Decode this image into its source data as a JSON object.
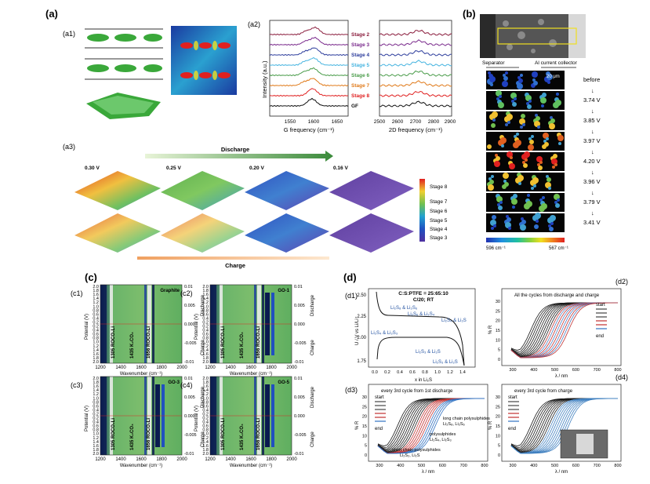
{
  "panels": {
    "a": "(a)",
    "a1": "(a1)",
    "a2": "(a2)",
    "a3": "(a3)",
    "b": "(b)",
    "c": "(c)",
    "c1": "(c1)",
    "c2": "(c2)",
    "c3": "(c3)",
    "c4": "(c4)",
    "d": "(d)",
    "d1": "(d1)",
    "d2": "(d2)",
    "d3": "(d3)",
    "d4": "(d4)"
  },
  "a2": {
    "ylabel": "Intensity (a.u.)",
    "xlabel_g": "G frequency (cm⁻¹)",
    "xlabel_2d": "2D frequency (cm⁻¹)",
    "g_ticks": [
      "1550",
      "1600",
      "1650"
    ],
    "d_ticks": [
      "2500",
      "2600",
      "2700",
      "2800",
      "2900"
    ],
    "stages": [
      {
        "label": "Stage 2",
        "color": "#8a1c3c"
      },
      {
        "label": "Stage 3",
        "color": "#7a2a8c"
      },
      {
        "label": "Stage 4",
        "color": "#2c3c9c"
      },
      {
        "label": "Stage 5",
        "color": "#46b4e0"
      },
      {
        "label": "Stage 6",
        "color": "#4a9c4a"
      },
      {
        "label": "Stage 7",
        "color": "#e07a1a"
      },
      {
        "label": "Stage 8",
        "color": "#e02020"
      },
      {
        "label": "GF",
        "color": "#111111"
      }
    ]
  },
  "a3": {
    "discharge": "Discharge",
    "charge": "Charge",
    "voltages": [
      "0.30 V",
      "0.25 V",
      "0.20 V",
      "0.16 V"
    ],
    "legend": [
      "Stage 8",
      "Stage 7",
      "Stage 6",
      "Stage 5",
      "Stage 4",
      "Stage 3"
    ]
  },
  "b": {
    "separator": "Separator",
    "collector": "Al current collector",
    "scale": "20 μm",
    "steps": [
      "before",
      "3.74 V",
      "3.85 V",
      "3.97 V",
      "4.20 V",
      "3.96 V",
      "3.79 V",
      "3.41 V"
    ],
    "cbar_left": "596 cm⁻¹",
    "cbar_right": "567 cm⁻¹"
  },
  "c": {
    "ylabel": "Potential (V)",
    "xlabel": "Wavenumber (cm⁻¹)",
    "x_ticks": [
      "1200",
      "1400",
      "1600",
      "1800",
      "2000"
    ],
    "y_ticks": [
      "2.0",
      "1.8",
      "1.6",
      "1.4",
      "1.2",
      "1.0",
      "0.8",
      "0.6",
      "0.4",
      "0.2",
      "0.2",
      "0.4",
      "0.6",
      "0.8",
      "1.0",
      "1.2",
      "1.4",
      "1.6",
      "1.8",
      "2.0"
    ],
    "c_ticks": [
      "0.01",
      "0.005",
      "0.000",
      "-0.005",
      "-0.01"
    ],
    "discharge": "Discharge",
    "charge": "Charge",
    "band1": "1305 ROCO₂Li",
    "band2": "1435 K₂CO₃",
    "band3": "1656 ROCO₂Li",
    "titles": [
      "Graphite",
      "GO-1",
      "GO-3",
      "GO-5"
    ]
  },
  "d": {
    "d1_title": "C:S:PTFE = 25:65:10",
    "d1_sub": "C/20; RT",
    "d1_ylabel": "U / V vs Li/Li⁺",
    "d1_xlabel": "x in Li₂S",
    "d1_yticks": [
      "2.50",
      "2.25",
      "2.00",
      "1.75"
    ],
    "d1_xticks": [
      "0.0",
      "0.2",
      "0.4",
      "0.6",
      "0.8",
      "1.0",
      "1.2",
      "1.4"
    ],
    "d1_ann": [
      "Li₂S₈ & Li₂S₆",
      "Li₂S₆ & Li₂S₄",
      "Li₂S₄ & Li₂S",
      "Li₂S₄ & Li₂S₃",
      "Li₂S₃ & Li₂S",
      "Li₂S₃ & Li₂S"
    ],
    "d2_title": "All the cycles from discharge and charge",
    "d3_title": "every 3rd cycle from 1st discharge",
    "d4_title": "every 3rd cycle from charge",
    "r_ylabel": "% R",
    "r_xlabel": "λ / nm",
    "r_xticks": [
      "300",
      "400",
      "500",
      "600",
      "700",
      "800"
    ],
    "r_yticks": [
      "30",
      "25",
      "20",
      "15",
      "10",
      "5",
      "0"
    ],
    "start": "start",
    "end": "end",
    "d3_ann": [
      "long chain polysulphides",
      "Li₂S₈, Li₂S₆",
      "polysulphides",
      "Li₂S₄, Li₂S₃",
      "short chain polysulphides",
      "Li₂S₂, Li₂S"
    ]
  }
}
